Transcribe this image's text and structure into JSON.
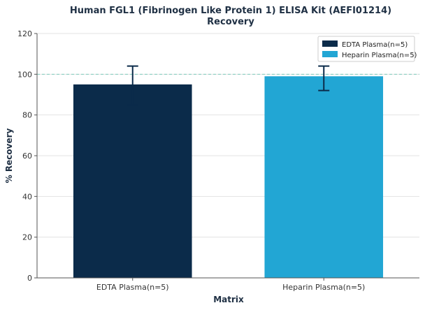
{
  "chart_data": {
    "type": "bar",
    "title": "Human FGL1 (Fibrinogen Like Protein 1) ELISA Kit (AEFI01214)",
    "subtitle": "Recovery",
    "xlabel": "Matrix",
    "ylabel": "% Recovery",
    "categories": [
      "EDTA Plasma(n=5)",
      "Heparin Plasma(n=5)"
    ],
    "values": [
      95,
      99
    ],
    "error_low": [
      85,
      92
    ],
    "error_high": [
      104,
      104
    ],
    "colors": [
      "#0b2b4a",
      "#22a6d4"
    ],
    "ylim": [
      0,
      120
    ],
    "yticks": [
      0,
      20,
      40,
      60,
      80,
      100,
      120
    ],
    "reference_line": 100,
    "reference_line_color": "#7fcbbd",
    "grid": true,
    "legend": {
      "placement": "top-right",
      "entries": [
        "EDTA Plasma(n=5)",
        "Heparin Plasma(n=5)"
      ]
    }
  }
}
